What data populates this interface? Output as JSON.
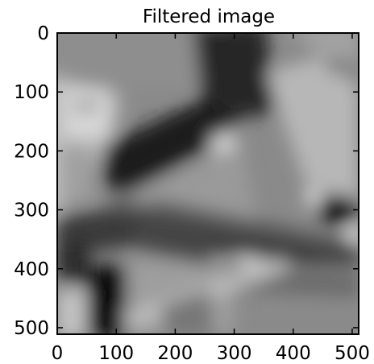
{
  "chart_data": {
    "type": "heatmap",
    "title": "Filtered image",
    "colormap": "gray",
    "xlim": [
      0,
      511
    ],
    "ylim": [
      511,
      0
    ],
    "x_ticks": [
      0,
      100,
      200,
      300,
      400,
      500
    ],
    "y_ticks": [
      0,
      100,
      200,
      300,
      400,
      500
    ],
    "x_tick_labels": [
      "0",
      "100",
      "200",
      "300",
      "400",
      "500"
    ],
    "y_tick_labels": [
      "0",
      "100",
      "200",
      "300",
      "400",
      "500"
    ],
    "grid": false,
    "image_description": "blurred grayscale photograph"
  }
}
